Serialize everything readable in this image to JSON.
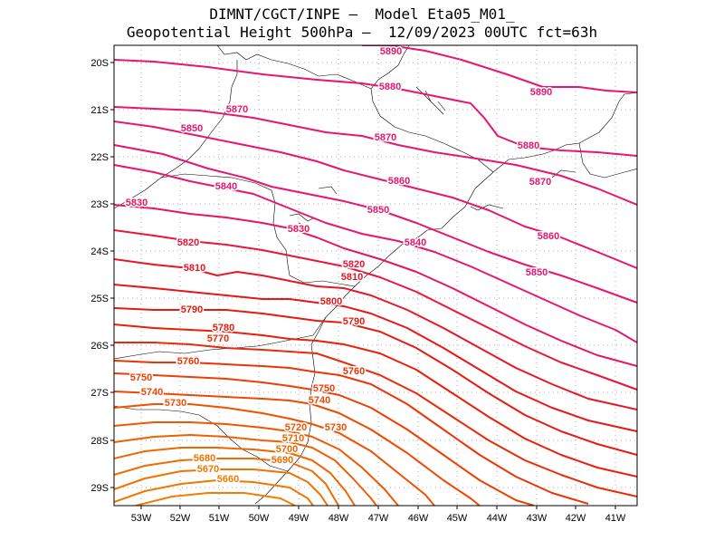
{
  "title_line1": "DIMNT/CGCT/INPE –  Model Eta05_M01_",
  "title_line2": "Geopotential Height 500hPa –  12/09/2023 00UTC fct=63h",
  "axes": {
    "x_ticks": [
      "53W",
      "52W",
      "51W",
      "50W",
      "49W",
      "48W",
      "47W",
      "46W",
      "45W",
      "44W",
      "43W",
      "42W",
      "41W"
    ],
    "y_ticks": [
      "20S",
      "21S",
      "22S",
      "23S",
      "24S",
      "25S",
      "26S",
      "27S",
      "28S",
      "29S"
    ]
  },
  "colors": {
    "contour_high": "#e8166e",
    "contour_mid": "#e8161e",
    "contour_low": "#f07800",
    "coastline": "#000000",
    "grid": "#999999"
  },
  "contours": [
    {
      "value": 5890,
      "label": "5890",
      "color": "#e8166e"
    },
    {
      "value": 5880,
      "label": "5880",
      "color": "#e8166e"
    },
    {
      "value": 5870,
      "label": "5870",
      "color": "#e8166e"
    },
    {
      "value": 5860,
      "label": "5860",
      "color": "#e8166e"
    },
    {
      "value": 5850,
      "label": "5850",
      "color": "#e8166e"
    },
    {
      "value": 5840,
      "label": "5840",
      "color": "#e8166e"
    },
    {
      "value": 5830,
      "label": "5830",
      "color": "#e8165a"
    },
    {
      "value": 5820,
      "label": "5820",
      "color": "#e81638"
    },
    {
      "value": 5810,
      "label": "5810",
      "color": "#e81624"
    },
    {
      "value": 5800,
      "label": "5800",
      "color": "#e81616"
    },
    {
      "value": 5790,
      "label": "5790",
      "color": "#e81a10"
    },
    {
      "value": 5780,
      "label": "5780",
      "color": "#ea1e0a"
    },
    {
      "value": 5770,
      "label": "5770",
      "color": "#ea2a08"
    },
    {
      "value": 5760,
      "label": "5760",
      "color": "#ec3406"
    },
    {
      "value": 5750,
      "label": "5750",
      "color": "#ee3e04"
    },
    {
      "value": 5740,
      "label": "5740",
      "color": "#ee4802"
    },
    {
      "value": 5730,
      "label": "5730",
      "color": "#f05000"
    },
    {
      "value": 5720,
      "label": "5720",
      "color": "#f05800"
    },
    {
      "value": 5710,
      "label": "5710",
      "color": "#f06000"
    },
    {
      "value": 5700,
      "label": "5700",
      "color": "#f06600"
    },
    {
      "value": 5690,
      "label": "5690",
      "color": "#f06c00"
    },
    {
      "value": 5680,
      "label": "5680",
      "color": "#f07200"
    },
    {
      "value": 5670,
      "label": "5670",
      "color": "#f07800"
    },
    {
      "value": 5660,
      "label": "5660",
      "color": "#f07e00"
    }
  ]
}
